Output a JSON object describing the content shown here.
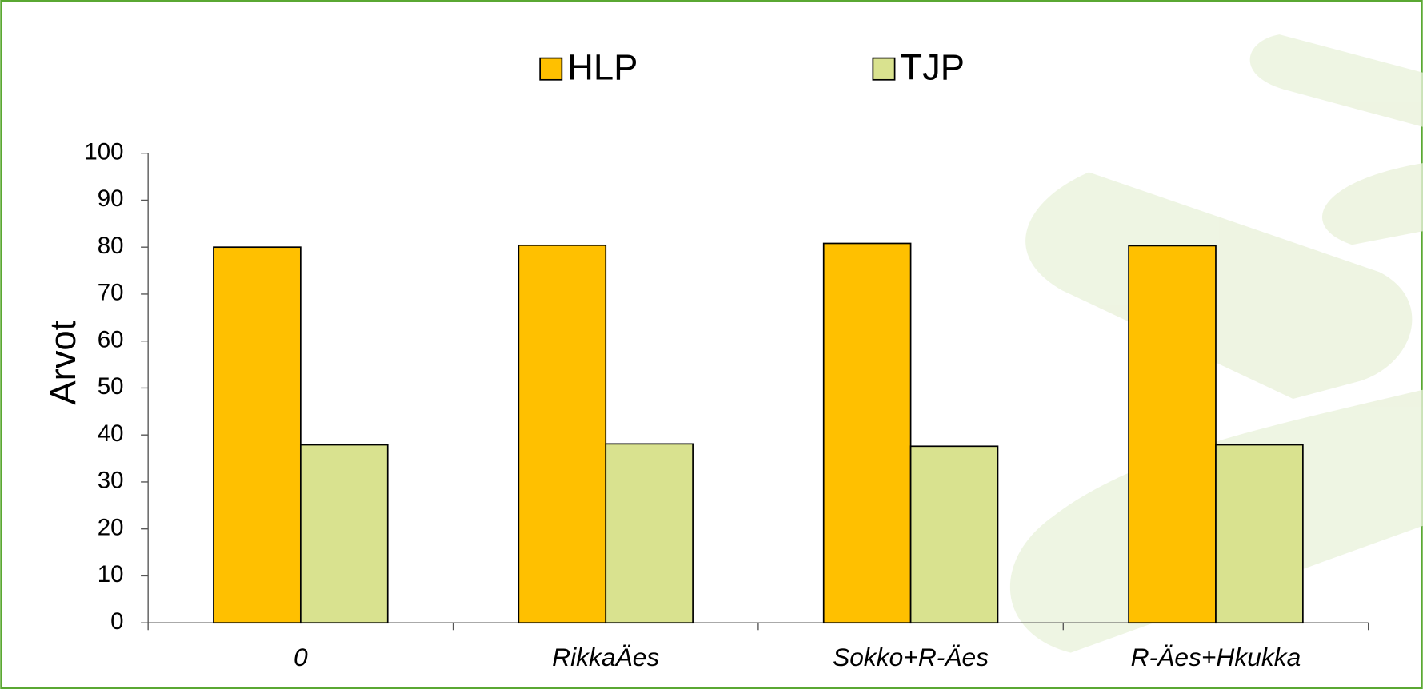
{
  "chart_data": {
    "type": "bar",
    "y_label": "Arvot",
    "categories": [
      "0",
      "RikkaÄes",
      "Sokko+R-Äes",
      "R-Äes+Hkukka"
    ],
    "series": [
      {
        "name": "HLP",
        "color": "#FFC000",
        "values": [
          80,
          80.4,
          80.8,
          80.3
        ]
      },
      {
        "name": "TJP",
        "color": "#D9E28F",
        "values": [
          37.9,
          38.1,
          37.6,
          37.9
        ]
      }
    ],
    "ylim": [
      0,
      100
    ],
    "yticks": [
      0,
      10,
      20,
      30,
      40,
      50,
      60,
      70,
      80,
      90,
      100
    ],
    "grid": false
  }
}
